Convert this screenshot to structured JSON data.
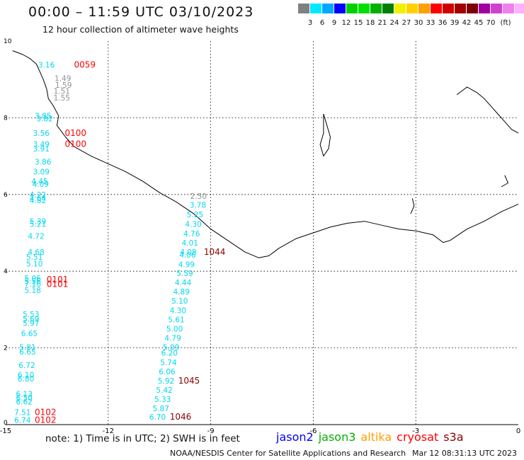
{
  "header": {
    "title": "00:00 – 11:59 UTC 03/10/2023",
    "subtitle": "12 hour collection of altimeter wave heights"
  },
  "legend": {
    "unit": "(ft)",
    "colors": [
      "#808080",
      "#00e8ff",
      "#00a8ff",
      "#0000ff",
      "#00d000",
      "#00e000",
      "#00b000",
      "#008000",
      "#f0f000",
      "#ffd000",
      "#ffa000",
      "#ff0000",
      "#d00000",
      "#a00000",
      "#800000",
      "#a000a0",
      "#d040d0",
      "#f080f0",
      "#ffb0ff",
      "#000000"
    ],
    "labels": [
      "3",
      "6",
      "9",
      "12",
      "15",
      "18",
      "21",
      "24",
      "27",
      "30",
      "33",
      "36",
      "39",
      "42",
      "45",
      "70"
    ]
  },
  "axes": {
    "x_ticks": [
      "-15",
      "-12",
      "-9",
      "-6",
      "-3",
      "0"
    ],
    "y_ticks": [
      "0",
      "2",
      "4",
      "6",
      "8",
      "10"
    ]
  },
  "wave_labels": [
    {
      "text": "3.16",
      "color": "#00d8f0",
      "x": -14.05,
      "y": 9.38
    },
    {
      "text": "1.49",
      "color": "#909090",
      "x": -13.57,
      "y": 9.03
    },
    {
      "text": "1.59",
      "color": "#909090",
      "x": -13.55,
      "y": 8.86
    },
    {
      "text": "1.51",
      "color": "#909090",
      "x": -13.6,
      "y": 8.7
    },
    {
      "text": "1.55",
      "color": "#909090",
      "x": -13.6,
      "y": 8.52
    },
    {
      "text": "3.85",
      "color": "#00d8f0",
      "x": -14.15,
      "y": 8.05
    },
    {
      "text": "3.82",
      "color": "#00d8f0",
      "x": -14.1,
      "y": 7.98
    },
    {
      "text": "3.56",
      "color": "#00d8f0",
      "x": -14.2,
      "y": 7.6
    },
    {
      "text": "3.49",
      "color": "#00d8f0",
      "x": -14.2,
      "y": 7.32
    },
    {
      "text": "3.91",
      "color": "#00d8f0",
      "x": -14.2,
      "y": 7.2
    },
    {
      "text": "3.86",
      "color": "#00d8f0",
      "x": -14.15,
      "y": 6.85
    },
    {
      "text": "3.09",
      "color": "#00d8f0",
      "x": -14.2,
      "y": 6.6
    },
    {
      "text": "4.45",
      "color": "#00d8f0",
      "x": -14.25,
      "y": 6.35
    },
    {
      "text": "4.09",
      "color": "#00d8f0",
      "x": -14.22,
      "y": 6.27
    },
    {
      "text": "4.22",
      "color": "#00d8f0",
      "x": -14.3,
      "y": 6.0
    },
    {
      "text": "4.64",
      "color": "#00d8f0",
      "x": -14.3,
      "y": 5.9
    },
    {
      "text": "4.82",
      "color": "#00d8f0",
      "x": -14.3,
      "y": 5.85
    },
    {
      "text": "5.39",
      "color": "#00d8f0",
      "x": -14.3,
      "y": 5.3
    },
    {
      "text": "5.21",
      "color": "#00d8f0",
      "x": -14.3,
      "y": 5.23
    },
    {
      "text": "4.72",
      "color": "#00d8f0",
      "x": -14.35,
      "y": 4.92
    },
    {
      "text": "4.68",
      "color": "#00d8f0",
      "x": -14.35,
      "y": 4.5
    },
    {
      "text": "5.51",
      "color": "#00d8f0",
      "x": -14.4,
      "y": 4.37
    },
    {
      "text": "5.10",
      "color": "#00d8f0",
      "x": -14.4,
      "y": 4.2
    },
    {
      "text": "5.06",
      "color": "#00d8f0",
      "x": -14.45,
      "y": 3.82
    },
    {
      "text": "5.56",
      "color": "#00d8f0",
      "x": -14.45,
      "y": 3.75
    },
    {
      "text": "7.16",
      "color": "#00d8f0",
      "x": -14.45,
      "y": 3.67
    },
    {
      "text": "5.18",
      "color": "#00d8f0",
      "x": -14.45,
      "y": 3.51
    },
    {
      "text": "5.53",
      "color": "#00d8f0",
      "x": -14.5,
      "y": 2.88
    },
    {
      "text": "5.69",
      "color": "#00d8f0",
      "x": -14.5,
      "y": 2.76
    },
    {
      "text": "5.97",
      "color": "#00d8f0",
      "x": -14.5,
      "y": 2.65
    },
    {
      "text": "6.65",
      "color": "#00d8f0",
      "x": -14.55,
      "y": 2.38
    },
    {
      "text": "5.81",
      "color": "#00d8f0",
      "x": -14.6,
      "y": 2.02
    },
    {
      "text": "6.65",
      "color": "#00d8f0",
      "x": -14.6,
      "y": 1.9
    },
    {
      "text": "6.72",
      "color": "#00d8f0",
      "x": -14.62,
      "y": 1.55
    },
    {
      "text": "6.10",
      "color": "#00d8f0",
      "x": -14.65,
      "y": 1.3
    },
    {
      "text": "6.80",
      "color": "#00d8f0",
      "x": -14.65,
      "y": 1.2
    },
    {
      "text": "6.13",
      "color": "#00d8f0",
      "x": -14.7,
      "y": 0.8
    },
    {
      "text": "6.50",
      "color": "#00d8f0",
      "x": -14.7,
      "y": 0.7
    },
    {
      "text": "6.62",
      "color": "#00d8f0",
      "x": -14.7,
      "y": 0.6
    },
    {
      "text": "7.51",
      "color": "#00d8f0",
      "x": -14.75,
      "y": 0.32
    },
    {
      "text": "6.74",
      "color": "#00d8f0",
      "x": -14.75,
      "y": 0.12
    },
    {
      "text": "2.50",
      "color": "#909090",
      "x": -9.6,
      "y": 5.96
    },
    {
      "text": "3.78",
      "color": "#00d8f0",
      "x": -9.62,
      "y": 5.73
    },
    {
      "text": "5.25",
      "color": "#00d8f0",
      "x": -9.7,
      "y": 5.48
    },
    {
      "text": "4.30",
      "color": "#00d8f0",
      "x": -9.75,
      "y": 5.23
    },
    {
      "text": "4.76",
      "color": "#00d8f0",
      "x": -9.8,
      "y": 4.98
    },
    {
      "text": "4.01",
      "color": "#00d8f0",
      "x": -9.85,
      "y": 4.74
    },
    {
      "text": "4.08",
      "color": "#00d8f0",
      "x": -9.9,
      "y": 4.5
    },
    {
      "text": "4.06",
      "color": "#00d8f0",
      "x": -9.92,
      "y": 4.43
    },
    {
      "text": "4.99",
      "color": "#00d8f0",
      "x": -9.95,
      "y": 4.18
    },
    {
      "text": "5.59",
      "color": "#00d8f0",
      "x": -10.0,
      "y": 3.95
    },
    {
      "text": "4.44",
      "color": "#00d8f0",
      "x": -10.05,
      "y": 3.71
    },
    {
      "text": "4.89",
      "color": "#00d8f0",
      "x": -10.1,
      "y": 3.47
    },
    {
      "text": "5.10",
      "color": "#00d8f0",
      "x": -10.15,
      "y": 3.23
    },
    {
      "text": "4.30",
      "color": "#00d8f0",
      "x": -10.2,
      "y": 2.98
    },
    {
      "text": "5.61",
      "color": "#00d8f0",
      "x": -10.25,
      "y": 2.74
    },
    {
      "text": "5.00",
      "color": "#00d8f0",
      "x": -10.3,
      "y": 2.5
    },
    {
      "text": "4.79",
      "color": "#00d8f0",
      "x": -10.35,
      "y": 2.26
    },
    {
      "text": "5.09",
      "color": "#00d8f0",
      "x": -10.4,
      "y": 2.02
    },
    {
      "text": "6.20",
      "color": "#00d8f0",
      "x": -10.45,
      "y": 1.87
    },
    {
      "text": "5.74",
      "color": "#00d8f0",
      "x": -10.48,
      "y": 1.62
    },
    {
      "text": "6.06",
      "color": "#00d8f0",
      "x": -10.52,
      "y": 1.38
    },
    {
      "text": "5.92",
      "color": "#00d8f0",
      "x": -10.55,
      "y": 1.14
    },
    {
      "text": "5.42",
      "color": "#00d8f0",
      "x": -10.6,
      "y": 0.9
    },
    {
      "text": "5.33",
      "color": "#00d8f0",
      "x": -10.65,
      "y": 0.66
    },
    {
      "text": "5.87",
      "color": "#00d8f0",
      "x": -10.7,
      "y": 0.42
    },
    {
      "text": "6.70",
      "color": "#00d8f0",
      "x": -10.8,
      "y": 0.2
    }
  ],
  "time_labels": [
    {
      "text": "0059",
      "color": "#ff0000",
      "x": -13.0,
      "y": 9.38
    },
    {
      "text": "0100",
      "color": "#ff0000",
      "x": -13.27,
      "y": 7.6
    },
    {
      "text": "0100",
      "color": "#ff0000",
      "x": -13.27,
      "y": 7.32
    },
    {
      "text": "0101",
      "color": "#ff0000",
      "x": -13.8,
      "y": 3.78
    },
    {
      "text": "0101",
      "color": "#ff0000",
      "x": -13.8,
      "y": 3.66
    },
    {
      "text": "0102",
      "color": "#ff0000",
      "x": -14.15,
      "y": 0.32
    },
    {
      "text": "0102",
      "color": "#ff0000",
      "x": -14.15,
      "y": 0.12
    },
    {
      "text": "1044",
      "color": "#8b0000",
      "x": -9.2,
      "y": 4.5
    },
    {
      "text": "1045",
      "color": "#8b0000",
      "x": -9.95,
      "y": 1.14
    },
    {
      "text": "1046",
      "color": "#8b0000",
      "x": -10.2,
      "y": 0.2
    }
  ],
  "note": "note: 1) Time is in UTC; 2) SWH is in feet",
  "satellites": [
    {
      "name": "jason2",
      "color": "#0000ff"
    },
    {
      "name": "jason3",
      "color": "#00b000"
    },
    {
      "name": "altika",
      "color": "#ffa000"
    },
    {
      "name": "cryosat",
      "color": "#ff0000"
    },
    {
      "name": "s3a",
      "color": "#8b0000"
    }
  ],
  "footer": {
    "credit": "NOAA/NESDIS Center for Satellite Applications and Research",
    "timestamp": "Mar 12 08:31:13 UTC 2023"
  }
}
